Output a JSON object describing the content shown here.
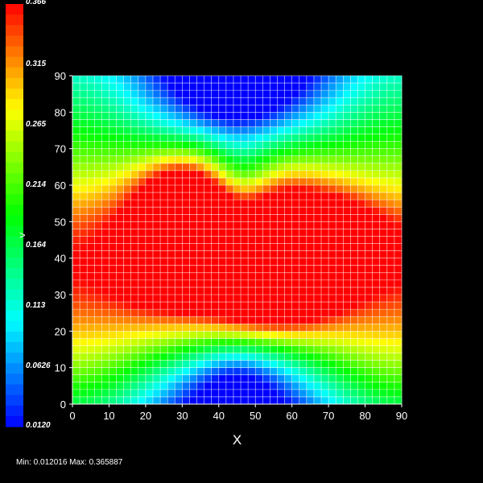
{
  "chart_data": {
    "type": "heatmap",
    "title": "",
    "xlabel": "X",
    "ylabel": "",
    "xlim": [
      0,
      90
    ],
    "ylim": [
      0,
      90
    ],
    "x_ticks": [
      "0",
      "10",
      "20",
      "30",
      "40",
      "50",
      "60",
      "70",
      "80",
      "90"
    ],
    "y_ticks": [
      "0",
      "10",
      "20",
      "30",
      "40",
      "50",
      "60",
      "70",
      "80",
      "90"
    ],
    "grid": true,
    "grid_cells": 45,
    "colormap": "blue-cyan-green-yellow-red",
    "colorbar": {
      "min": 0.012,
      "max": 0.366,
      "labels": [
        "0.366",
        "0.315",
        "0.265",
        "0.214",
        "0.164",
        "0.113",
        "0.0626",
        "0.0120"
      ],
      "marker": ">"
    },
    "value_range_text": "Min: 0.012016 Max: 0.365887",
    "hot_regions": [
      {
        "x": 30,
        "y": 57,
        "value": 0.36
      },
      {
        "x": 30,
        "y": 40,
        "value": 0.36
      },
      {
        "x": 55,
        "y": 30,
        "value": 0.36
      },
      {
        "x": 68,
        "y": 45,
        "value": 0.36
      },
      {
        "x": 45,
        "y": 40,
        "value": 0.3
      }
    ],
    "colors": {
      "blue": "#0000ff",
      "cyan": "#00ffff",
      "green": "#00ff00",
      "yellow": "#ffff00",
      "red": "#ff0000"
    }
  }
}
